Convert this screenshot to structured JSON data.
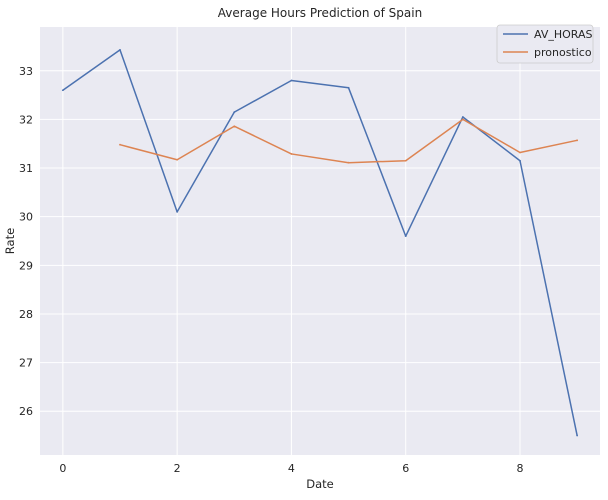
{
  "chart_data": {
    "type": "line",
    "title": "Average Hours Prediction of Spain",
    "xlabel": "Date",
    "ylabel": "Rate",
    "xlim": [
      -0.4,
      9.4
    ],
    "ylim": [
      25.1,
      33.9
    ],
    "grid": true,
    "legend_position": "top-right",
    "x_ticks": [
      0,
      2,
      4,
      6,
      8
    ],
    "y_ticks": [
      26,
      27,
      28,
      29,
      30,
      31,
      32,
      33
    ],
    "series": [
      {
        "name": "AV_HORAS",
        "color": "#4c72b0",
        "x": [
          0,
          1,
          2,
          3,
          4,
          5,
          6,
          7,
          8,
          9
        ],
        "y": [
          32.6,
          33.43,
          30.1,
          32.15,
          32.8,
          32.65,
          29.6,
          32.05,
          31.15,
          25.5
        ]
      },
      {
        "name": "pronostico",
        "color": "#dd8452",
        "x": [
          1,
          2,
          3,
          4,
          5,
          6,
          7,
          8,
          9
        ],
        "y": [
          31.48,
          31.17,
          31.86,
          31.29,
          31.11,
          31.15,
          32.0,
          31.32,
          31.57
        ]
      }
    ]
  }
}
